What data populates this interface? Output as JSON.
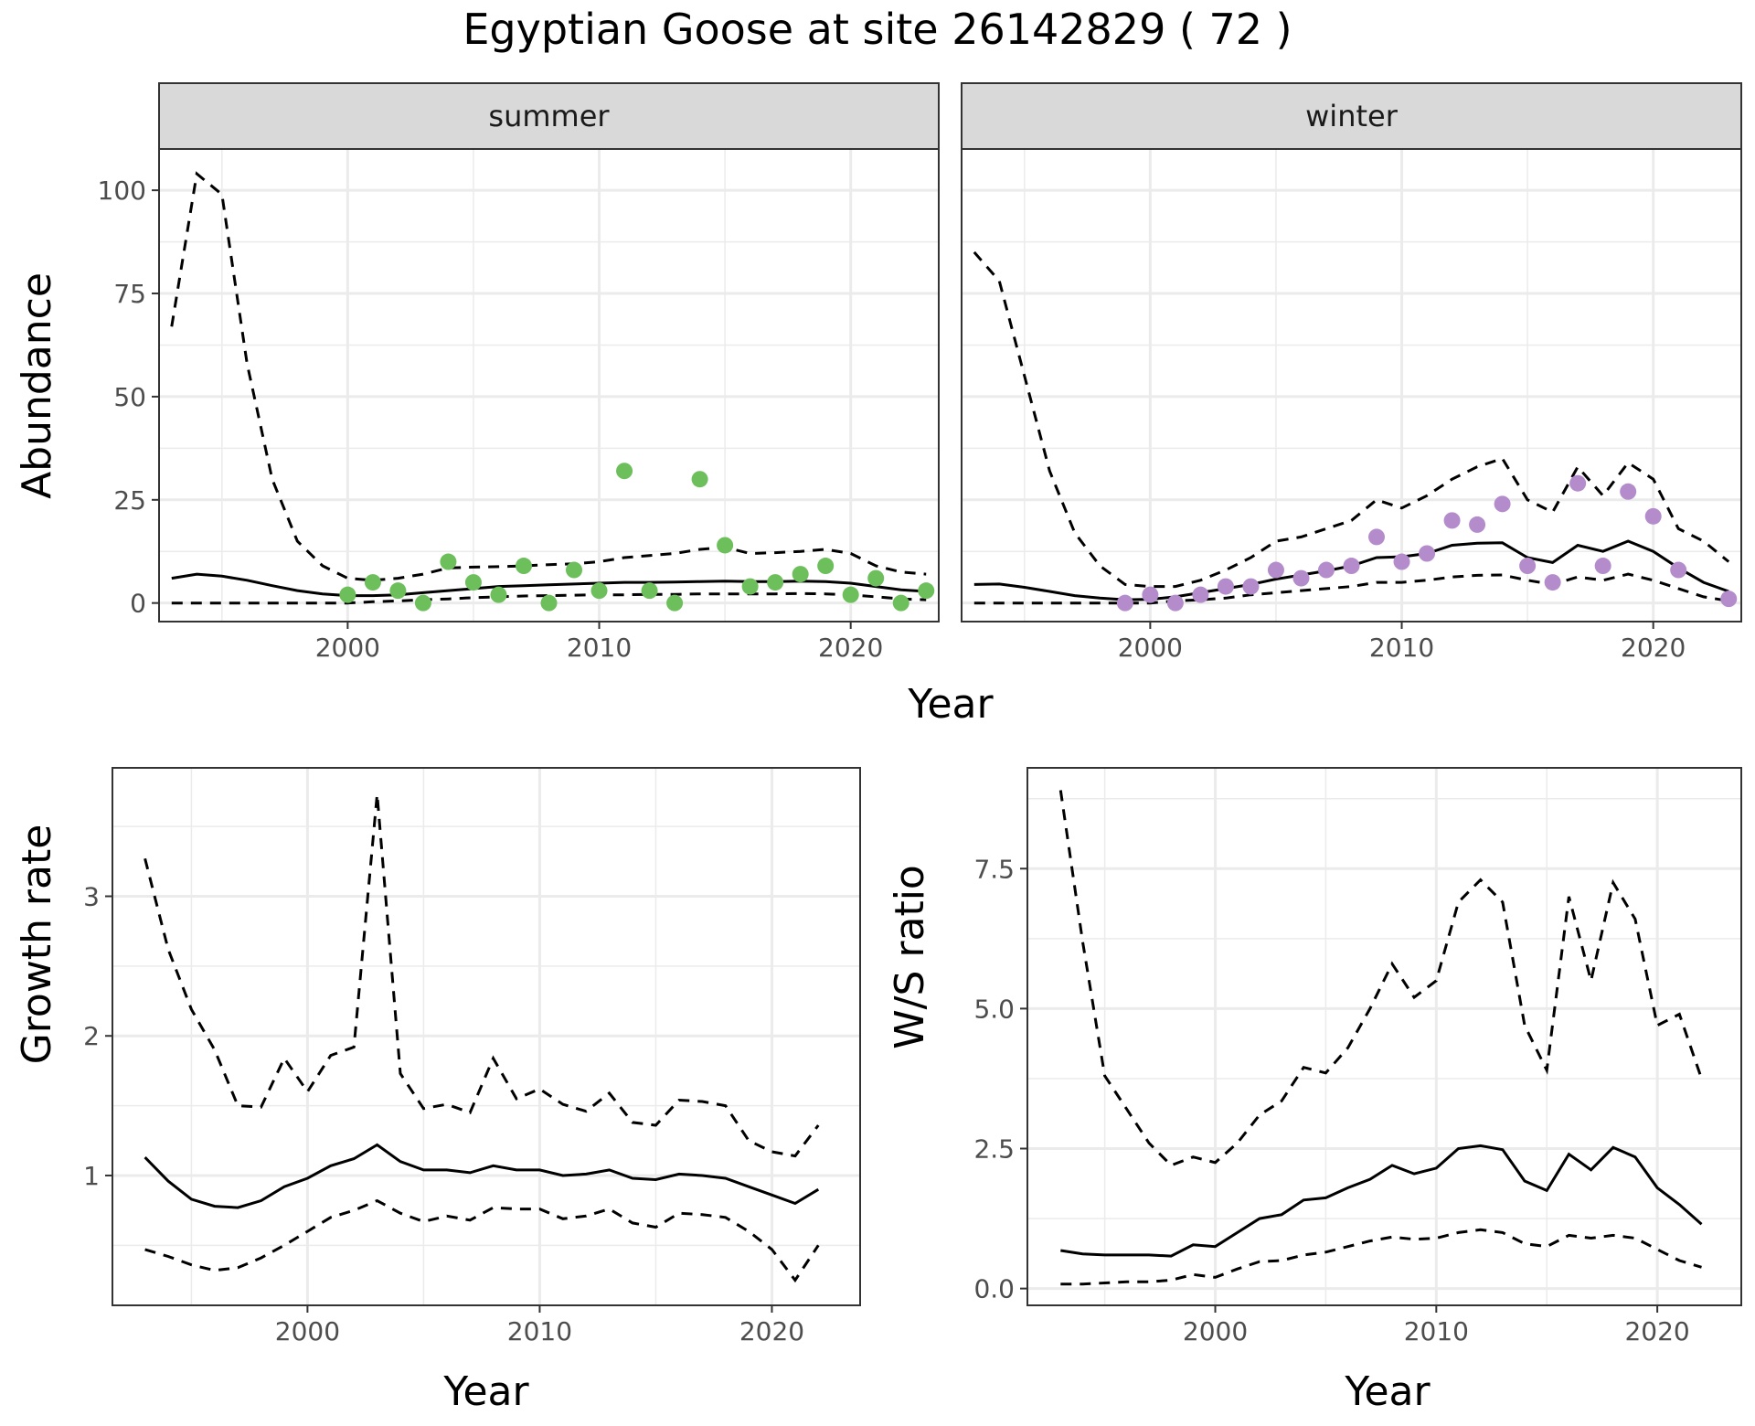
{
  "title": "Egyptian Goose at site 26142829 ( 72 )",
  "colors": {
    "summer_points": "#6cbf5b",
    "winter_points": "#b48ccb",
    "lines": "#000000",
    "strip_fill": "#d9d9d9",
    "grid": "#ebebeb"
  },
  "chart_data": [
    {
      "type": "scatter",
      "panel": "summer",
      "strip_label": "summer",
      "xlabel": "Year",
      "ylabel": "Abundance",
      "xlim": [
        1992.5,
        2023.5
      ],
      "ylim": [
        -4.5,
        110
      ],
      "x_ticks": [
        2000,
        2010,
        2020
      ],
      "y_ticks": [
        0,
        25,
        50,
        75,
        100
      ],
      "grid": true,
      "series": [
        {
          "role": "estimate",
          "style": "solid",
          "x": [
            1993,
            1994,
            1995,
            1996,
            1997,
            1998,
            1999,
            2000,
            2001,
            2002,
            2003,
            2004,
            2005,
            2006,
            2007,
            2008,
            2009,
            2010,
            2011,
            2012,
            2013,
            2014,
            2015,
            2016,
            2017,
            2018,
            2019,
            2020,
            2021,
            2022,
            2023
          ],
          "y": [
            6,
            7,
            6.5,
            5.5,
            4.2,
            3,
            2.2,
            1.8,
            1.8,
            2,
            2.5,
            3,
            3.5,
            4,
            4.2,
            4.4,
            4.6,
            4.8,
            5,
            5,
            5.1,
            5.2,
            5.3,
            5.2,
            5.2,
            5.3,
            5.2,
            4.8,
            4,
            3.2,
            2.8
          ]
        },
        {
          "role": "upper",
          "style": "dashed",
          "x": [
            1993,
            1994,
            1995,
            1996,
            1997,
            1998,
            1999,
            2000,
            2001,
            2002,
            2003,
            2004,
            2005,
            2006,
            2007,
            2008,
            2009,
            2010,
            2011,
            2012,
            2013,
            2014,
            2015,
            2016,
            2017,
            2018,
            2019,
            2020,
            2021,
            2022,
            2023
          ],
          "y": [
            67,
            104,
            99,
            58,
            30,
            15,
            9,
            6,
            5.5,
            6,
            7,
            8.5,
            8.7,
            8.8,
            9,
            9.3,
            9.5,
            10,
            11,
            11.5,
            12,
            13,
            13.5,
            12,
            12.2,
            12.5,
            13,
            12,
            9,
            7.5,
            7
          ]
        },
        {
          "role": "lower",
          "style": "dashed",
          "x": [
            1993,
            1994,
            1995,
            1996,
            1997,
            1998,
            1999,
            2000,
            2001,
            2002,
            2003,
            2004,
            2005,
            2006,
            2007,
            2008,
            2009,
            2010,
            2011,
            2012,
            2013,
            2014,
            2015,
            2016,
            2017,
            2018,
            2019,
            2020,
            2021,
            2022,
            2023
          ],
          "y": [
            0,
            0,
            0,
            0,
            0,
            0,
            0,
            0,
            0.3,
            0.5,
            0.8,
            1,
            1.3,
            1.5,
            1.7,
            1.8,
            1.9,
            2,
            2,
            2.1,
            2.1,
            2.2,
            2.2,
            2.2,
            2.2,
            2.3,
            2.2,
            2,
            1.5,
            1,
            0.8
          ]
        },
        {
          "role": "observed",
          "style": "points",
          "x": [
            2000,
            2001,
            2002,
            2003,
            2004,
            2005,
            2006,
            2007,
            2008,
            2009,
            2010,
            2011,
            2012,
            2013,
            2014,
            2015,
            2016,
            2017,
            2018,
            2019,
            2020,
            2021,
            2022,
            2023
          ],
          "y": [
            2,
            5,
            3,
            0,
            10,
            5,
            2,
            9,
            0,
            8,
            3,
            32,
            3,
            0,
            30,
            14,
            4,
            5,
            7,
            9,
            2,
            6,
            0,
            3
          ]
        }
      ]
    },
    {
      "type": "scatter",
      "panel": "winter",
      "strip_label": "winter",
      "xlabel": "Year",
      "ylabel": "Abundance",
      "xlim": [
        1992.5,
        2023.5
      ],
      "ylim": [
        -4.5,
        110
      ],
      "x_ticks": [
        2000,
        2010,
        2020
      ],
      "y_ticks": [
        0,
        25,
        50,
        75,
        100
      ],
      "grid": true,
      "series": [
        {
          "role": "estimate",
          "style": "solid",
          "x": [
            1993,
            1994,
            1995,
            1996,
            1997,
            1998,
            1999,
            2000,
            2001,
            2002,
            2003,
            2004,
            2005,
            2006,
            2007,
            2008,
            2009,
            2010,
            2011,
            2012,
            2013,
            2014,
            2015,
            2016,
            2017,
            2018,
            2019,
            2020,
            2021,
            2022,
            2023
          ],
          "y": [
            4.5,
            4.6,
            3.8,
            2.8,
            1.8,
            1.2,
            0.8,
            0.9,
            1.5,
            2.5,
            3.5,
            4.5,
            5.8,
            6.8,
            7.8,
            9,
            11,
            11.2,
            12,
            14,
            14.5,
            14.6,
            11,
            9.8,
            14,
            12.5,
            15,
            12.5,
            8.5,
            5,
            2.8
          ]
        },
        {
          "role": "upper",
          "style": "dashed",
          "x": [
            1993,
            1994,
            1995,
            1996,
            1997,
            1998,
            1999,
            2000,
            2001,
            2002,
            2003,
            2004,
            2005,
            2006,
            2007,
            2008,
            2009,
            2010,
            2011,
            2012,
            2013,
            2014,
            2015,
            2016,
            2017,
            2018,
            2019,
            2020,
            2021,
            2022,
            2023
          ],
          "y": [
            85,
            78,
            55,
            32,
            17,
            9,
            4.5,
            4,
            4,
            5.5,
            8,
            11,
            15,
            16,
            18,
            20,
            25,
            23,
            26,
            30,
            33,
            35,
            25,
            22,
            33,
            26,
            34,
            30,
            18,
            15,
            10
          ]
        },
        {
          "role": "lower",
          "style": "dashed",
          "x": [
            1993,
            1994,
            1995,
            1996,
            1997,
            1998,
            1999,
            2000,
            2001,
            2002,
            2003,
            2004,
            2005,
            2006,
            2007,
            2008,
            2009,
            2010,
            2011,
            2012,
            2013,
            2014,
            2015,
            2016,
            2017,
            2018,
            2019,
            2020,
            2021,
            2022,
            2023
          ],
          "y": [
            0,
            0,
            0,
            0,
            0,
            0,
            0,
            0,
            0.5,
            0.8,
            1.2,
            2,
            2.5,
            3,
            3.5,
            4,
            5,
            5,
            5.5,
            6.3,
            6.7,
            6.8,
            5.5,
            4.5,
            6.3,
            5.5,
            7,
            5.5,
            3.5,
            1.5,
            0.5
          ]
        },
        {
          "role": "observed",
          "style": "points",
          "x": [
            1999,
            2000,
            2001,
            2002,
            2003,
            2004,
            2005,
            2006,
            2007,
            2008,
            2009,
            2010,
            2011,
            2012,
            2013,
            2014,
            2015,
            2016,
            2017,
            2018,
            2019,
            2020,
            2021,
            2023
          ],
          "y": [
            0,
            2,
            0,
            2,
            4,
            4,
            8,
            6,
            8,
            9,
            16,
            10,
            12,
            20,
            19,
            24,
            9,
            5,
            29,
            9,
            27,
            21,
            8,
            1
          ]
        }
      ]
    },
    {
      "type": "line",
      "panel": "growth",
      "xlabel": "Year",
      "ylabel": "Growth rate",
      "xlim": [
        1991.6,
        2023.8
      ],
      "ylim": [
        0.07,
        3.92
      ],
      "x_ticks": [
        2000,
        2010,
        2020
      ],
      "y_ticks": [
        1,
        2,
        3
      ],
      "grid": true,
      "series": [
        {
          "role": "estimate",
          "style": "solid",
          "x": [
            1993,
            1994,
            1995,
            1996,
            1997,
            1998,
            1999,
            2000,
            2001,
            2002,
            2003,
            2004,
            2005,
            2006,
            2007,
            2008,
            2009,
            2010,
            2011,
            2012,
            2013,
            2014,
            2015,
            2016,
            2017,
            2018,
            2019,
            2020,
            2021,
            2022
          ],
          "y": [
            1.13,
            0.96,
            0.83,
            0.78,
            0.77,
            0.82,
            0.92,
            0.98,
            1.07,
            1.12,
            1.22,
            1.1,
            1.04,
            1.04,
            1.02,
            1.07,
            1.04,
            1.04,
            1.0,
            1.01,
            1.04,
            0.98,
            0.97,
            1.01,
            1.0,
            0.98,
            0.92,
            0.86,
            0.8,
            0.9
          ]
        },
        {
          "role": "upper",
          "style": "dashed",
          "x": [
            1993,
            1994,
            1995,
            1996,
            1997,
            1998,
            1999,
            2000,
            2001,
            2002,
            2003,
            2004,
            2005,
            2006,
            2007,
            2008,
            2009,
            2010,
            2011,
            2012,
            2013,
            2014,
            2015,
            2016,
            2017,
            2018,
            2019,
            2020,
            2021,
            2022
          ],
          "y": [
            3.27,
            2.62,
            2.19,
            1.9,
            1.5,
            1.49,
            1.84,
            1.6,
            1.86,
            1.92,
            3.73,
            1.73,
            1.48,
            1.51,
            1.45,
            1.84,
            1.55,
            1.62,
            1.51,
            1.46,
            1.59,
            1.38,
            1.36,
            1.54,
            1.53,
            1.5,
            1.25,
            1.17,
            1.14,
            1.36
          ]
        },
        {
          "role": "lower",
          "style": "dashed",
          "x": [
            1993,
            1994,
            1995,
            1996,
            1997,
            1998,
            1999,
            2000,
            2001,
            2002,
            2003,
            2004,
            2005,
            2006,
            2007,
            2008,
            2009,
            2010,
            2011,
            2012,
            2013,
            2014,
            2015,
            2016,
            2017,
            2018,
            2019,
            2020,
            2021,
            2022
          ],
          "y": [
            0.47,
            0.42,
            0.36,
            0.32,
            0.34,
            0.41,
            0.5,
            0.6,
            0.7,
            0.75,
            0.82,
            0.73,
            0.67,
            0.71,
            0.68,
            0.77,
            0.76,
            0.76,
            0.69,
            0.71,
            0.76,
            0.66,
            0.63,
            0.73,
            0.72,
            0.7,
            0.6,
            0.47,
            0.25,
            0.5
          ]
        }
      ]
    },
    {
      "type": "line",
      "panel": "ratio",
      "xlabel": "Year",
      "ylabel": "W/S ratio",
      "xlim": [
        1991.5,
        2023.8
      ],
      "ylim": [
        -0.3,
        9.3
      ],
      "x_ticks": [
        2000,
        2010,
        2020
      ],
      "y_ticks": [
        0.0,
        2.5,
        5.0,
        7.5
      ],
      "y_tick_labels": [
        "0.0",
        "2.5",
        "5.0",
        "7.5"
      ],
      "grid": true,
      "series": [
        {
          "role": "estimate",
          "style": "solid",
          "x": [
            1993,
            1994,
            1995,
            1996,
            1997,
            1998,
            1999,
            2000,
            2001,
            2002,
            2003,
            2004,
            2005,
            2006,
            2007,
            2008,
            2009,
            2010,
            2011,
            2012,
            2013,
            2014,
            2015,
            2016,
            2017,
            2018,
            2019,
            2020,
            2021,
            2022
          ],
          "y": [
            0.68,
            0.62,
            0.6,
            0.6,
            0.6,
            0.58,
            0.78,
            0.75,
            1.0,
            1.25,
            1.32,
            1.58,
            1.62,
            1.8,
            1.95,
            2.2,
            2.05,
            2.15,
            2.5,
            2.55,
            2.48,
            1.92,
            1.75,
            2.4,
            2.12,
            2.52,
            2.35,
            1.8,
            1.5,
            1.15
          ]
        },
        {
          "role": "upper",
          "style": "dashed",
          "x": [
            1993,
            1994,
            1995,
            1996,
            1997,
            1998,
            1999,
            2000,
            2001,
            2002,
            2003,
            2004,
            2005,
            2006,
            2007,
            2008,
            2009,
            2010,
            2011,
            2012,
            2013,
            2014,
            2015,
            2016,
            2017,
            2018,
            2019,
            2020,
            2021,
            2022
          ],
          "y": [
            8.9,
            6.2,
            3.8,
            3.2,
            2.6,
            2.2,
            2.35,
            2.25,
            2.6,
            3.1,
            3.35,
            3.95,
            3.85,
            4.3,
            5.0,
            5.8,
            5.2,
            5.5,
            6.9,
            7.3,
            6.9,
            4.7,
            3.9,
            7.0,
            5.5,
            7.25,
            6.6,
            4.7,
            4.9,
            3.75
          ]
        },
        {
          "role": "lower",
          "style": "dashed",
          "x": [
            1993,
            1994,
            1995,
            1996,
            1997,
            1998,
            1999,
            2000,
            2001,
            2002,
            2003,
            2004,
            2005,
            2006,
            2007,
            2008,
            2009,
            2010,
            2011,
            2012,
            2013,
            2014,
            2015,
            2016,
            2017,
            2018,
            2019,
            2020,
            2021,
            2022
          ],
          "y": [
            0.08,
            0.08,
            0.1,
            0.12,
            0.12,
            0.15,
            0.25,
            0.2,
            0.35,
            0.48,
            0.5,
            0.6,
            0.65,
            0.75,
            0.85,
            0.92,
            0.88,
            0.9,
            1.0,
            1.05,
            1.0,
            0.8,
            0.75,
            0.95,
            0.9,
            0.95,
            0.9,
            0.7,
            0.5,
            0.38
          ]
        }
      ]
    }
  ]
}
